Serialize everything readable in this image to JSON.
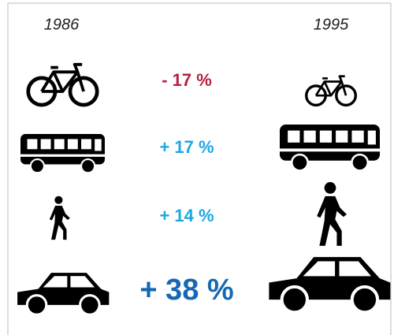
{
  "years": [
    "1986",
    "1995"
  ],
  "rows": [
    {
      "label": "- 17 %",
      "color": "#b5213c"
    },
    {
      "label": "+ 17 %",
      "color": "#1ea7e1"
    },
    {
      "label": "+ 14 %",
      "color": "#1ea7e1"
    },
    {
      "label": "+ 38 %",
      "color": "#1668b4"
    }
  ]
}
